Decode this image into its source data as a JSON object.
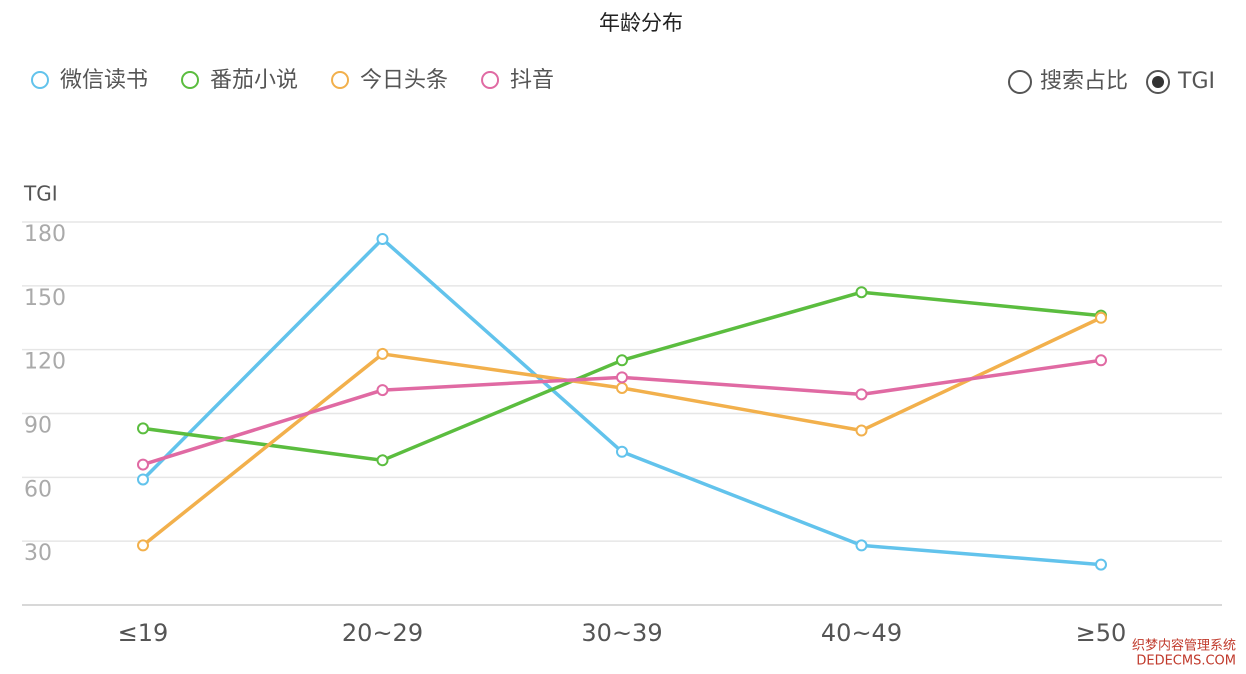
{
  "chart_data": {
    "type": "line",
    "title": "年龄分布",
    "y_label": "TGI",
    "categories": [
      "≤19",
      "20~29",
      "30~39",
      "40~49",
      "≥50"
    ],
    "series": [
      {
        "name": "微信读书",
        "color": "#62c3ec",
        "values": [
          59,
          172,
          72,
          28,
          19
        ]
      },
      {
        "name": "番茄小说",
        "color": "#5bbd3f",
        "values": [
          83,
          68,
          115,
          147,
          136
        ]
      },
      {
        "name": "今日头条",
        "color": "#f2b04c",
        "values": [
          28,
          118,
          102,
          82,
          135
        ]
      },
      {
        "name": "抖音",
        "color": "#e06aa3",
        "values": [
          66,
          101,
          107,
          99,
          115
        ]
      }
    ],
    "ylim": [
      0,
      180
    ],
    "yticks": [
      30,
      60,
      90,
      120,
      150,
      180
    ],
    "grid": true,
    "toggle": {
      "options": [
        "搜索占比",
        "TGI"
      ],
      "selected": "TGI"
    },
    "watermark": [
      "织梦内容管理系统",
      "DEDECMS.COM"
    ]
  }
}
